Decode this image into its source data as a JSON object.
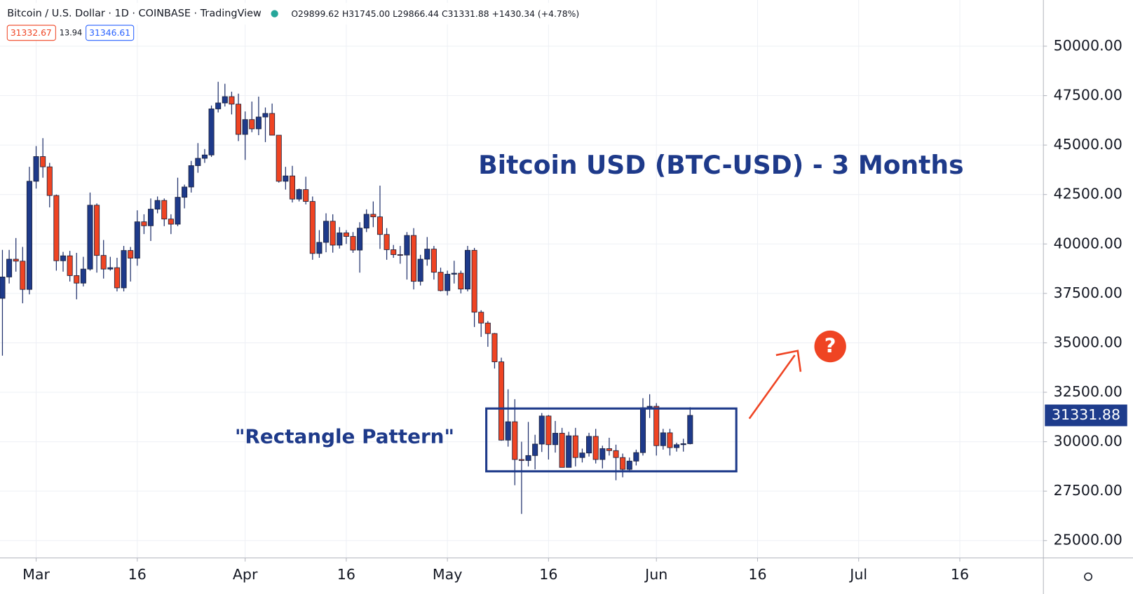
{
  "chart_data": {
    "type": "candlestick",
    "header": {
      "symbol": "Bitcoin / U.S. Dollar · 1D · COINBASE · TradingView",
      "ohlc_text": "O29899.62 H31745.00 L29866.44 C31331.88 +1430.34 (+4.78%)",
      "bid": "31332.67",
      "spread": "13.94",
      "ask": "31346.61"
    },
    "title": "Bitcoin USD (BTC-USD) - 3 Months",
    "annotation": "\"Rectangle Pattern\"",
    "last_price": 31331.88,
    "up_color": "#1e3a8a",
    "down_color": "#ef4423",
    "wick_color": "#1e2f6b",
    "open": [
      37250,
      38330,
      39230,
      39130,
      37700,
      43170,
      44420,
      43900,
      42450,
      39150,
      39400,
      38400,
      38020,
      38730,
      41960,
      39420,
      38730,
      38800,
      37780,
      39670,
      39280,
      41120,
      40920,
      41760,
      42200,
      41260,
      41000,
      42360,
      42880,
      43960,
      44330,
      44500,
      46830,
      47130,
      47450,
      47070,
      45540,
      46290,
      45820,
      46420,
      46600,
      45500,
      43170,
      43440,
      42270,
      42750,
      42150,
      39520,
      40080,
      41150,
      39940,
      40560,
      40380,
      39690,
      40800,
      41500,
      41370,
      40480,
      39710,
      39460,
      39440,
      40430,
      38110,
      39230,
      39740,
      38570,
      37640,
      38470,
      38520,
      37720,
      39680,
      36550,
      36000,
      35470,
      34040,
      30080,
      31010,
      29100,
      29050,
      29300,
      29880,
      31300,
      29850,
      30430,
      28700,
      30300,
      29200,
      29430,
      30270,
      29100,
      29650,
      29550,
      29200,
      28600,
      29020,
      29450,
      31720,
      31790,
      29800,
      30450,
      29700,
      29850,
      29899.62
    ],
    "high": [
      39700,
      39700,
      40300,
      39850,
      43900,
      44950,
      45350,
      44100,
      42500,
      39600,
      39650,
      39550,
      39350,
      42600,
      42050,
      40200,
      39350,
      39300,
      39900,
      39850,
      41700,
      41500,
      42300,
      42400,
      42300,
      41500,
      43350,
      43000,
      44200,
      45100,
      44800,
      47000,
      48200,
      48100,
      47700,
      47600,
      46700,
      47200,
      47450,
      46900,
      47100,
      45500,
      43900,
      43950,
      42800,
      43400,
      42400,
      40700,
      41550,
      41500,
      40850,
      40700,
      40600,
      41100,
      41750,
      42150,
      42950,
      40800,
      39950,
      39900,
      40600,
      40800,
      39450,
      40350,
      39900,
      38800,
      38650,
      39150,
      38650,
      39900,
      39800,
      36650,
      36100,
      35500,
      34250,
      32650,
      32150,
      30000,
      31000,
      30350,
      31450,
      31350,
      31050,
      30700,
      30500,
      30700,
      29650,
      30450,
      30650,
      29800,
      30200,
      29850,
      29400,
      29200,
      29600,
      32200,
      32400,
      31950,
      30650,
      30650,
      29950,
      30150,
      31745
    ],
    "low": [
      34350,
      38000,
      38600,
      37000,
      37450,
      42800,
      43350,
      41850,
      38650,
      38600,
      38100,
      37200,
      37850,
      38650,
      38550,
      38250,
      38650,
      37600,
      37600,
      38100,
      38900,
      40500,
      40150,
      41550,
      40900,
      40500,
      40900,
      41800,
      42600,
      43600,
      44100,
      44400,
      46650,
      46950,
      46550,
      45200,
      44250,
      45650,
      45500,
      45150,
      45500,
      43100,
      42750,
      42100,
      42150,
      42000,
      39200,
      39300,
      39580,
      39560,
      39770,
      40000,
      39550,
      38550,
      40600,
      40850,
      39750,
      39200,
      39300,
      39000,
      38200,
      37700,
      37900,
      38900,
      38200,
      37600,
      37400,
      38000,
      37500,
      37600,
      35800,
      35300,
      34800,
      33700,
      30050,
      29750,
      27800,
      26350,
      28750,
      28600,
      29480,
      29100,
      29450,
      28700,
      28700,
      28750,
      28950,
      29250,
      28900,
      28650,
      29300,
      28050,
      28200,
      28450,
      28800,
      29300,
      31200,
      29300,
      29600,
      29300,
      29500,
      29500,
      29866.44
    ],
    "close": [
      38330,
      39230,
      39130,
      37700,
      43170,
      44420,
      43900,
      42450,
      39150,
      39400,
      38400,
      38020,
      38730,
      41960,
      39420,
      38730,
      38800,
      37780,
      39670,
      39280,
      41120,
      40920,
      41760,
      42200,
      41260,
      41000,
      42360,
      42880,
      43960,
      44330,
      44500,
      46830,
      47130,
      47450,
      47070,
      45540,
      46290,
      45820,
      46420,
      46600,
      45500,
      43170,
      43440,
      42270,
      42750,
      42150,
      39520,
      40080,
      41150,
      39940,
      40560,
      40380,
      39690,
      40800,
      41500,
      41370,
      40480,
      39710,
      39460,
      39440,
      40430,
      38110,
      39230,
      39740,
      38570,
      37640,
      38470,
      38520,
      37720,
      39680,
      36550,
      36000,
      35470,
      34040,
      30080,
      31010,
      29100,
      29050,
      29300,
      29880,
      31300,
      29850,
      30430,
      28700,
      30300,
      29200,
      29430,
      30270,
      29100,
      29650,
      29550,
      29200,
      28600,
      29020,
      29450,
      31720,
      31790,
      29800,
      30450,
      29700,
      29850,
      29900,
      31331.88
    ],
    "xlim": [
      -0.36,
      154.4
    ],
    "xticks": [
      {
        "value": 5,
        "label": "Mar"
      },
      {
        "value": 20,
        "label": "16"
      },
      {
        "value": 36,
        "label": "Apr"
      },
      {
        "value": 51,
        "label": "16"
      },
      {
        "value": 66,
        "label": "May"
      },
      {
        "value": 81,
        "label": "16"
      },
      {
        "value": 97,
        "label": "Jun"
      },
      {
        "value": 112,
        "label": "16"
      },
      {
        "value": 127,
        "label": "Jul"
      },
      {
        "value": 142,
        "label": "16"
      }
    ],
    "ylim": [
      24124,
      52336
    ],
    "yticks": [
      {
        "value": 25000,
        "label": "25000.00"
      },
      {
        "value": 27500,
        "label": "27500.00"
      },
      {
        "value": 30000,
        "label": "30000.00"
      },
      {
        "value": 32500,
        "label": "32500.00"
      },
      {
        "value": 35000,
        "label": "35000.00"
      },
      {
        "value": 37500,
        "label": "37500.00"
      },
      {
        "value": 40000,
        "label": "40000.00"
      },
      {
        "value": 42500,
        "label": "42500.00"
      },
      {
        "value": 45000,
        "label": "45000.00"
      },
      {
        "value": 47500,
        "label": "47500.00"
      },
      {
        "value": 50000,
        "label": "50000.00"
      }
    ],
    "grid": true
  }
}
